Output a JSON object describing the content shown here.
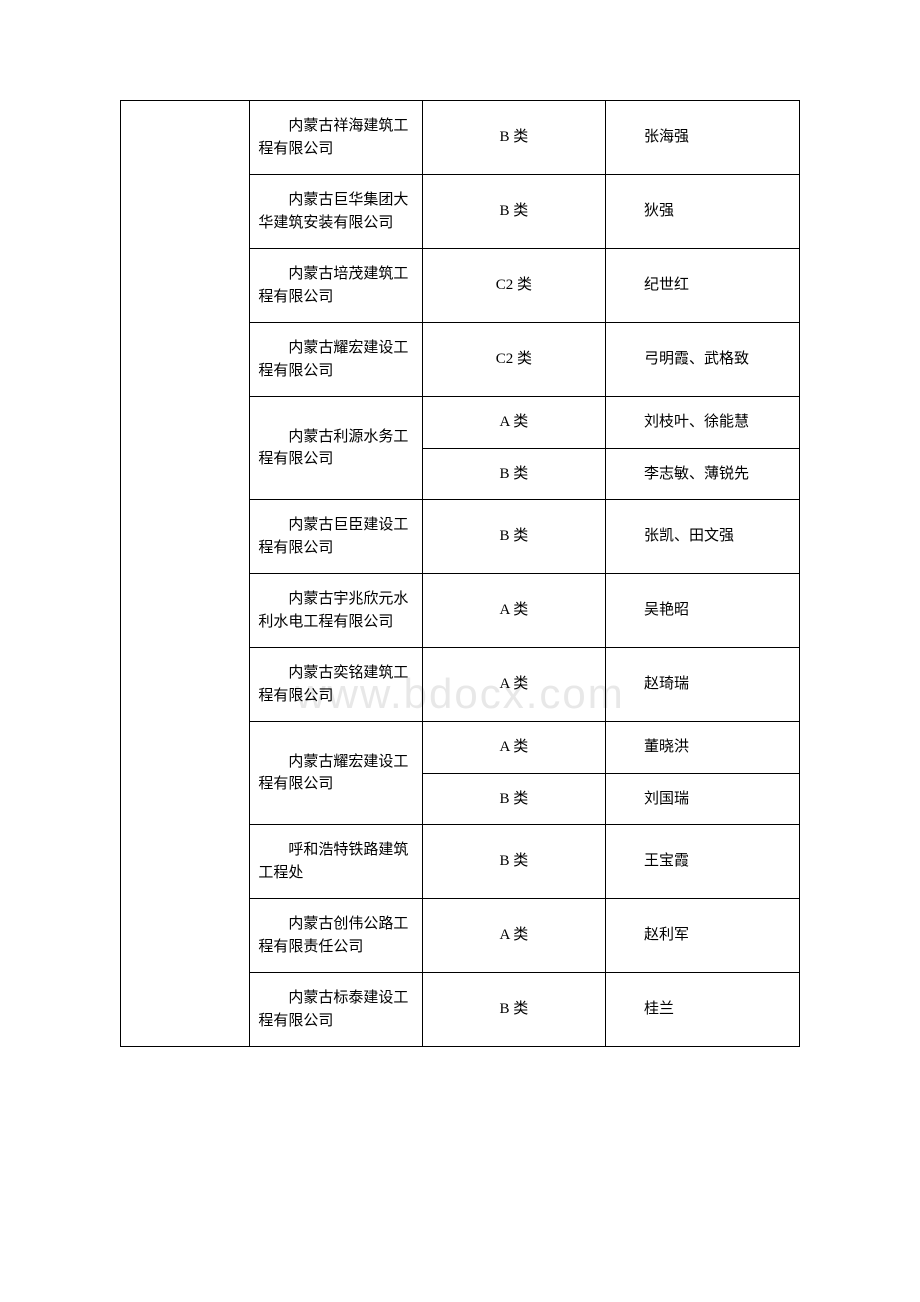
{
  "watermark": "www.bdocx.com",
  "table": {
    "rows": [
      {
        "company": "内蒙古祥海建筑工程有限公司",
        "category": "B 类",
        "person": "张海强",
        "companyRowspan": 1
      },
      {
        "company": "内蒙古巨华集团大华建筑安装有限公司",
        "category": "B 类",
        "person": "狄强",
        "companyRowspan": 1
      },
      {
        "company": "内蒙古培茂建筑工程有限公司",
        "category": "C2 类",
        "person": "纪世红",
        "companyRowspan": 1
      },
      {
        "company": "内蒙古耀宏建设工程有限公司",
        "category": "C2 类",
        "person": "弓明霞、武格致",
        "companyRowspan": 1
      },
      {
        "company": "内蒙古利源水务工程有限公司",
        "category": "A 类",
        "person": "刘枝叶、徐能慧",
        "companyRowspan": 2
      },
      {
        "category": "B 类",
        "person": "李志敏、薄锐先"
      },
      {
        "company": "内蒙古巨臣建设工程有限公司",
        "category": "B 类",
        "person": "张凯、田文强",
        "companyRowspan": 1
      },
      {
        "company": "内蒙古宇兆欣元水利水电工程有限公司",
        "category": "A 类",
        "person": "吴艳昭",
        "companyRowspan": 1
      },
      {
        "company": "内蒙古奕铭建筑工程有限公司",
        "category": "A 类",
        "person": "赵琦瑞",
        "companyRowspan": 1
      },
      {
        "company": "内蒙古耀宏建设工程有限公司",
        "category": "A 类",
        "person": "董晓洪",
        "companyRowspan": 2
      },
      {
        "category": "B 类",
        "person": "刘国瑞"
      },
      {
        "company": "呼和浩特铁路建筑工程处",
        "category": "B 类",
        "person": "王宝霞",
        "companyRowspan": 1
      },
      {
        "company": "内蒙古创伟公路工程有限责任公司",
        "category": "A 类",
        "person": "赵利军",
        "companyRowspan": 1
      },
      {
        "company": "内蒙古标泰建设工程有限公司",
        "category": "B 类",
        "person": "桂兰",
        "companyRowspan": 1
      }
    ]
  }
}
